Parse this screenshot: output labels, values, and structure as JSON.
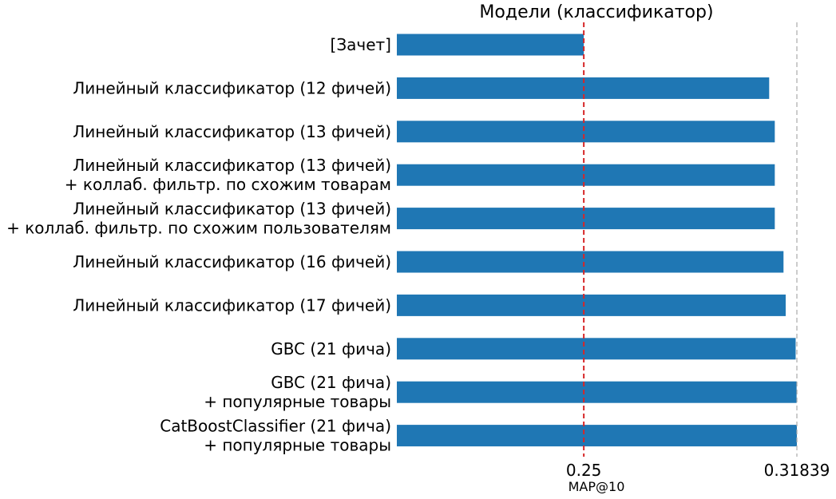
{
  "chart_data": {
    "type": "bar",
    "orientation": "horizontal",
    "title": "Модели (классификатор)",
    "xlabel": "MAP@10",
    "ylabel": "",
    "xlim": [
      0.19,
      0.31839
    ],
    "xticks": [
      {
        "value": 0.25,
        "label": "0.25"
      },
      {
        "value": 0.31839,
        "label": "0.31839"
      }
    ],
    "grid": false,
    "legend": "none",
    "bar_color": "#1f77b4",
    "reference_lines": [
      {
        "value": 0.25,
        "color": "#d62728",
        "style": "dashed"
      },
      {
        "value": 0.31839,
        "color": "#aaaaaa",
        "style": "dashed"
      }
    ],
    "categories": [
      [
        "[Зачет]"
      ],
      [
        "Линейный классификатор (12 фичей)"
      ],
      [
        "Линейный классификатор (13 фичей)"
      ],
      [
        "Линейный классификатор (13 фичей)",
        "+ коллаб. фильтр. по схожим товарам"
      ],
      [
        "Линейный классификатор (13 фичей)",
        "+ коллаб. фильтр. по схожим пользователям"
      ],
      [
        "Линейный классификатор (16 фичей)"
      ],
      [
        "Линейный классификатор (17 фичей)"
      ],
      [
        "GBC (21 фича)"
      ],
      [
        "GBC (21 фича)",
        "+ популярные товары"
      ],
      [
        "CatBoostClassifier (21 фича)",
        "+ популярные товары"
      ]
    ],
    "values": [
      0.25,
      0.3095,
      0.3113,
      0.3113,
      0.3113,
      0.3141,
      0.3148,
      0.318,
      0.3183,
      0.31839
    ]
  }
}
